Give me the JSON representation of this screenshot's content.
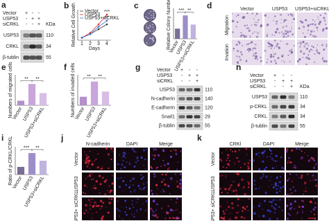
{
  "a": {
    "label": "a",
    "conditions": [
      "Vector",
      "USP53",
      "siCRKL"
    ],
    "signs": [
      [
        "+",
        "-",
        "-"
      ],
      [
        "-",
        "+",
        "+"
      ],
      [
        "-",
        "-",
        "+"
      ]
    ],
    "unit": "KDa",
    "proteins": [
      "USP53",
      "CRKL",
      "β-tublin"
    ],
    "weights": [
      "110",
      "34",
      "55"
    ]
  },
  "b": {
    "label": "b",
    "chart_data": {
      "type": "line",
      "xlabel": "Days",
      "ylabel": "Relative Cell Growth",
      "x": [
        1,
        2,
        3,
        4
      ],
      "xlim": [
        0.5,
        4.5
      ],
      "xticks": [
        1,
        2,
        3,
        4
      ],
      "ylim": [
        0,
        2.5
      ],
      "series": [
        {
          "name": "Vector",
          "color": "#333333",
          "values": [
            0.2,
            0.5,
            0.9,
            1.3
          ]
        },
        {
          "name": "USP53",
          "color": "#e03030",
          "values": [
            0.2,
            0.6,
            1.3,
            2.1
          ]
        },
        {
          "name": "USP53+siCRKL",
          "color": "#3b6fd0",
          "values": [
            0.2,
            0.5,
            1.1,
            1.6
          ]
        }
      ],
      "annotations": [
        "***",
        "**"
      ]
    }
  },
  "c": {
    "label": "c",
    "chart_data": {
      "type": "bar",
      "ylabel": "Relative Colony Number",
      "categories": [
        "Vector",
        "USP53",
        "USP53+siCRKL"
      ],
      "values": [
        1,
        2.3,
        1.4
      ],
      "colors": [
        "#7a6e96",
        "#9d8ec9",
        "#bfb3e0"
      ],
      "ylim": [
        0,
        3
      ],
      "annotations": [
        "***",
        "**"
      ]
    }
  },
  "d": {
    "label": "d",
    "columns": [
      "Vector",
      "USP53",
      "USP53+siCRKL"
    ],
    "rows": [
      "Migration",
      "Invation"
    ]
  },
  "e": {
    "label": "e",
    "chart_data": {
      "type": "bar",
      "ylabel": "Numbers of migrated cells",
      "categories": [
        "Vector",
        "USP53",
        "USP53+siCRKL"
      ],
      "values": [
        15,
        70,
        40
      ],
      "colors": [
        "#b48fc9",
        "#c9a5dc",
        "#d8bde6"
      ],
      "ylim": [
        0,
        100
      ],
      "annotations": [
        "**",
        "**"
      ]
    }
  },
  "f": {
    "label": "f",
    "chart_data": {
      "type": "bar",
      "ylabel": "Numbers of invaded cells",
      "categories": [
        "Vector",
        "USP53",
        "USP53+siCRKL"
      ],
      "values": [
        28,
        78,
        45
      ],
      "colors": [
        "#b48fc9",
        "#c9a5dc",
        "#d8bde6"
      ],
      "ylim": [
        0,
        100
      ],
      "annotations": [
        "**",
        "**"
      ]
    }
  },
  "g": {
    "label": "g",
    "conditions": [
      "Vector",
      "USP53",
      "siCRKL"
    ],
    "signs": [
      [
        "+",
        "-",
        "-"
      ],
      [
        "-",
        "+",
        "+"
      ],
      [
        "-",
        "-",
        "+"
      ]
    ],
    "proteins": [
      "USP53",
      "N-cadherin",
      "E-cadherin",
      "Snail1",
      "β-tublin"
    ],
    "weights": [
      "110",
      "140",
      "120",
      "29",
      "55"
    ]
  },
  "h": {
    "label": "h",
    "conditions": [
      "Vector",
      "USP53",
      "siCRKL"
    ],
    "signs": [
      [
        "+",
        "-",
        "-"
      ],
      [
        "-",
        "+",
        "+"
      ],
      [
        "-",
        "-",
        "+"
      ]
    ],
    "unit": "KDa",
    "proteins": [
      "USP53",
      "p-CRKL",
      "CRKL",
      "β-tublin"
    ],
    "weights": [
      "110",
      "34",
      "34",
      "55"
    ]
  },
  "i": {
    "label": "i",
    "chart_data": {
      "type": "bar",
      "ylabel": "Ratio of p-CRKL/CRKL",
      "categories": [
        "Vector",
        "USP53",
        "USP53+siCRKL"
      ],
      "values": [
        0.5,
        1.4,
        0.9
      ],
      "colors": [
        "#7a6e96",
        "#9d8ec9",
        "#bfb3e0"
      ],
      "ylim": [
        0,
        1.8
      ],
      "annotations": [
        "***",
        "**"
      ]
    }
  },
  "j": {
    "label": "j",
    "columns": [
      "N-cadherin",
      "DAPI",
      "Merge"
    ],
    "rows": [
      "Vector",
      "USP53",
      "USP53+ siCRKL"
    ]
  },
  "k": {
    "label": "k",
    "columns": [
      "CRKl",
      "DAPI",
      "Merge"
    ],
    "rows": [
      "Vector",
      "USP53",
      "USP53+ siCRKL"
    ]
  }
}
